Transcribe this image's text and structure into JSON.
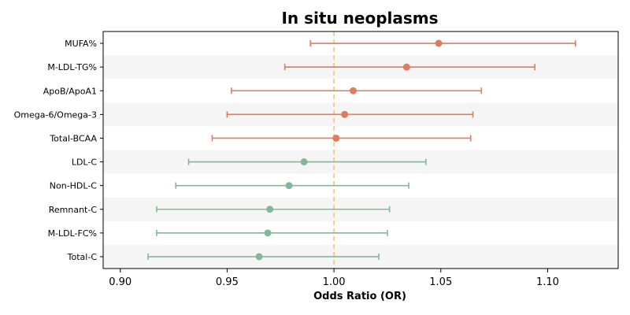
{
  "chart_data": {
    "type": "forest",
    "title": "In situ neoplasms",
    "xlabel": "Odds Ratio (OR)",
    "xlim": [
      0.892,
      1.133
    ],
    "xticks": [
      0.9,
      0.95,
      1.0,
      1.05,
      1.1
    ],
    "xtick_labels": [
      "0.90",
      "0.95",
      "1.00",
      "1.05",
      "1.10"
    ],
    "reference_line": 1.0,
    "reference_color": "#f2c57c",
    "grid": false,
    "row_band_color": "#f5f5f5",
    "rows": [
      {
        "label": "MUFA%",
        "or": 1.049,
        "lower": 0.989,
        "upper": 1.113,
        "color": "#e07b5f"
      },
      {
        "label": "M-LDL-TG%",
        "or": 1.034,
        "lower": 0.977,
        "upper": 1.094,
        "color": "#e07b5f"
      },
      {
        "label": "ApoB/ApoA1",
        "or": 1.009,
        "lower": 0.952,
        "upper": 1.069,
        "color": "#e07b5f"
      },
      {
        "label": "Omega-6/Omega-3",
        "or": 1.005,
        "lower": 0.95,
        "upper": 1.065,
        "color": "#e07b5f"
      },
      {
        "label": "Total-BCAA",
        "or": 1.001,
        "lower": 0.943,
        "upper": 1.064,
        "color": "#e07b5f"
      },
      {
        "label": "LDL-C",
        "or": 0.986,
        "lower": 0.932,
        "upper": 1.043,
        "color": "#82b89a"
      },
      {
        "label": "Non-HDL-C",
        "or": 0.979,
        "lower": 0.926,
        "upper": 1.035,
        "color": "#82b89a"
      },
      {
        "label": "Remnant-C",
        "or": 0.97,
        "lower": 0.917,
        "upper": 1.026,
        "color": "#82b89a"
      },
      {
        "label": "M-LDL-FC%",
        "or": 0.969,
        "lower": 0.917,
        "upper": 1.025,
        "color": "#82b89a"
      },
      {
        "label": "Total-C",
        "or": 0.965,
        "lower": 0.913,
        "upper": 1.021,
        "color": "#82b89a"
      }
    ]
  }
}
